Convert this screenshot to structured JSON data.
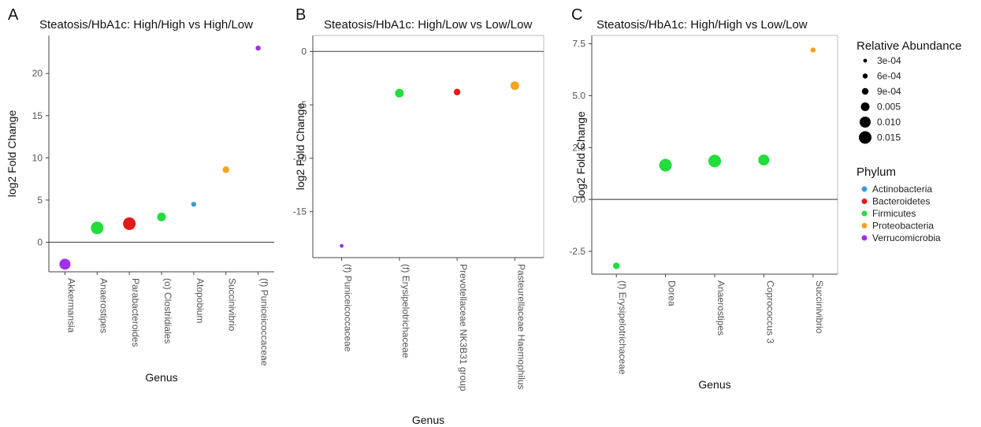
{
  "chart_data": [
    {
      "panel": "A",
      "type": "scatter",
      "title": "Steatosis/HbA1c: High/High vs High/Low",
      "xlabel": "Genus",
      "ylabel": "log2 Fold Change",
      "ylim": [
        -3.5,
        24.5
      ],
      "yticks": [
        0,
        5,
        10,
        15,
        20
      ],
      "categories": [
        "Akkermansia",
        "Anaerostipes",
        "Parabacteroides",
        "(o) Clostridiales",
        "Atopobium",
        "Succinivibrio",
        "(f) Puniceicoccaceae"
      ],
      "points": [
        {
          "genus": "Akkermansia",
          "value": -2.6,
          "phylum": "Verrucomicrobia",
          "abundance": 0.01
        },
        {
          "genus": "Anaerostipes",
          "value": 1.7,
          "phylum": "Firmicutes",
          "abundance": 0.015
        },
        {
          "genus": "Parabacteroides",
          "value": 2.2,
          "phylum": "Bacteroidetes",
          "abundance": 0.015
        },
        {
          "genus": "(o) Clostridiales",
          "value": 3.0,
          "phylum": "Firmicutes",
          "abundance": 0.005
        },
        {
          "genus": "Atopobium",
          "value": 4.5,
          "phylum": "Actinobacteria",
          "abundance": 0.0006
        },
        {
          "genus": "Succinivibrio",
          "value": 8.6,
          "phylum": "Proteobacteria",
          "abundance": 0.0009
        },
        {
          "genus": "(f) Puniceicoccaceae",
          "value": 23.0,
          "phylum": "Verrucomicrobia",
          "abundance": 0.0006
        }
      ]
    },
    {
      "panel": "B",
      "type": "scatter",
      "title": "Steatosis/HbA1c: High/Low vs Low/Low",
      "xlabel": "Genus",
      "ylabel": "log2 Fold Change",
      "ylim": [
        -19.3,
        1.5
      ],
      "yticks": [
        0,
        -5,
        -10,
        -15
      ],
      "categories": [
        "(f) Puniceicoccaceae",
        "(f) Erysipelotrichaceae",
        "Prevotellaceae NK3B31 group",
        "Pasteurellaceae Haemophilus"
      ],
      "points": [
        {
          "genus": "(f) Puniceicoccaceae",
          "value": -18.2,
          "phylum": "Verrucomicrobia",
          "abundance": 0.0003
        },
        {
          "genus": "(f) Erysipelotrichaceae",
          "value": -3.9,
          "phylum": "Firmicutes",
          "abundance": 0.005
        },
        {
          "genus": "Prevotellaceae NK3B31 group",
          "value": -3.8,
          "phylum": "Bacteroidetes",
          "abundance": 0.0009
        },
        {
          "genus": "Pasteurellaceae Haemophilus",
          "value": -3.2,
          "phylum": "Proteobacteria",
          "abundance": 0.005
        }
      ]
    },
    {
      "panel": "C",
      "type": "scatter",
      "title": "Steatosis/HbA1c: High/High vs Low/Low",
      "xlabel": "Genus",
      "ylabel": "log2 Fold Change",
      "ylim": [
        -3.6,
        7.9
      ],
      "yticks": [
        -2.5,
        0.0,
        2.5,
        5.0,
        7.5
      ],
      "yticklabels": [
        "-2.5",
        "0.0",
        "2.5",
        "5.0",
        "7.5"
      ],
      "categories": [
        "(f) Erysipelotrichaceae",
        "Dorea",
        "Anaerostipes",
        "Coprococcus 3",
        "Succinivibrio"
      ],
      "points": [
        {
          "genus": "(f) Erysipelotrichaceae",
          "value": -3.2,
          "phylum": "Firmicutes",
          "abundance": 0.0009
        },
        {
          "genus": "Dorea",
          "value": 1.65,
          "phylum": "Firmicutes",
          "abundance": 0.015
        },
        {
          "genus": "Anaerostipes",
          "value": 1.85,
          "phylum": "Firmicutes",
          "abundance": 0.015
        },
        {
          "genus": "Coprococcus 3",
          "value": 1.9,
          "phylum": "Firmicutes",
          "abundance": 0.01
        },
        {
          "genus": "Succinivibrio",
          "value": 7.2,
          "phylum": "Proteobacteria",
          "abundance": 0.0006
        }
      ]
    }
  ],
  "panel_labels": [
    "A",
    "B",
    "C"
  ],
  "legend": {
    "size_title": "Relative Abundance",
    "size_entries": [
      {
        "label": "3e-04",
        "value": 0.0003
      },
      {
        "label": "6e-04",
        "value": 0.0006
      },
      {
        "label": "9e-04",
        "value": 0.0009
      },
      {
        "label": "0.005",
        "value": 0.005
      },
      {
        "label": "0.010",
        "value": 0.01
      },
      {
        "label": "0.015",
        "value": 0.015
      }
    ],
    "color_title": "Phylum",
    "color_entries": [
      {
        "label": "Actinobacteria",
        "color": "#3b9ad9"
      },
      {
        "label": "Bacteroidetes",
        "color": "#e31a1c"
      },
      {
        "label": "Firmicutes",
        "color": "#22dd3a"
      },
      {
        "label": "Proteobacteria",
        "color": "#f6a21d"
      },
      {
        "label": "Verrucomicrobia",
        "color": "#a02ff0"
      }
    ]
  }
}
